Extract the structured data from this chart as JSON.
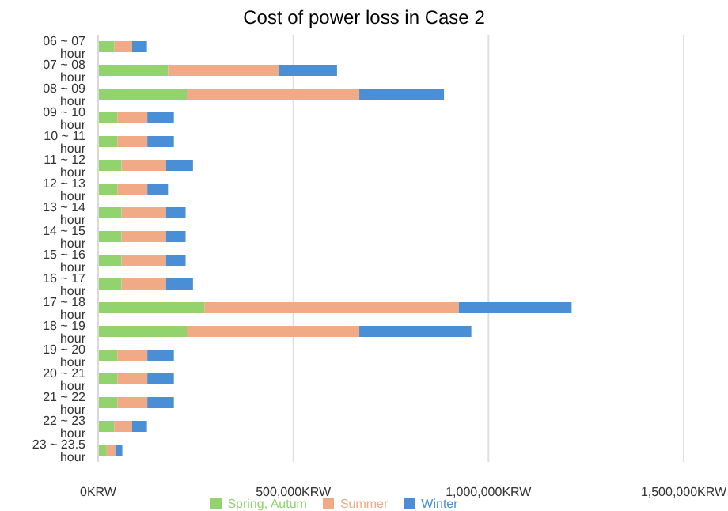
{
  "chart_data": {
    "type": "bar",
    "orientation": "horizontal",
    "stacked": true,
    "title": "Cost of power loss in Case 2",
    "categories": [
      "06 ~ 07 hour",
      "07 ~ 08 hour",
      "08 ~ 09 hour",
      "09 ~ 10 hour",
      "10 ~ 11 hour",
      "11 ~ 12 hour",
      "12 ~ 13 hour",
      "13 ~ 14 hour",
      "14 ~ 15 hour",
      "15 ~ 16 hour",
      "16 ~ 17 hour",
      "17 ~ 18 hour",
      "18 ~ 19 hour",
      "19 ~ 20 hour",
      "20 ~ 21 hour",
      "21 ~ 22 hour",
      "22 ~ 23 hour",
      "23 ~ 23.5 hour"
    ],
    "series": [
      {
        "name": "Spring, Autum",
        "color": "#92d36e",
        "values": [
          41000,
          179000,
          227000,
          49000,
          49000,
          60000,
          49000,
          60000,
          60000,
          60000,
          60000,
          272000,
          227000,
          49000,
          49000,
          49000,
          41000,
          22000
        ]
      },
      {
        "name": "Summer",
        "color": "#f0aa86",
        "values": [
          46000,
          283000,
          442000,
          77000,
          77000,
          114000,
          77000,
          114000,
          114000,
          114000,
          114000,
          652000,
          442000,
          77000,
          77000,
          77000,
          46000,
          22000
        ]
      },
      {
        "name": "Winter",
        "color": "#4a8fd6",
        "values": [
          38000,
          150000,
          217000,
          68000,
          68000,
          69000,
          53000,
          50000,
          50000,
          50000,
          69000,
          289000,
          287000,
          68000,
          68000,
          68000,
          38000,
          18000
        ]
      }
    ],
    "xlim": [
      0,
      1500000
    ],
    "xticks": [
      {
        "value": 0,
        "label": "0KRW"
      },
      {
        "value": 500000,
        "label": "500,000KRW"
      },
      {
        "value": 1000000,
        "label": "1,000,000KRW"
      },
      {
        "value": 1500000,
        "label": "1,500,000KRW"
      }
    ],
    "grid": "x",
    "legend": "bottom"
  }
}
